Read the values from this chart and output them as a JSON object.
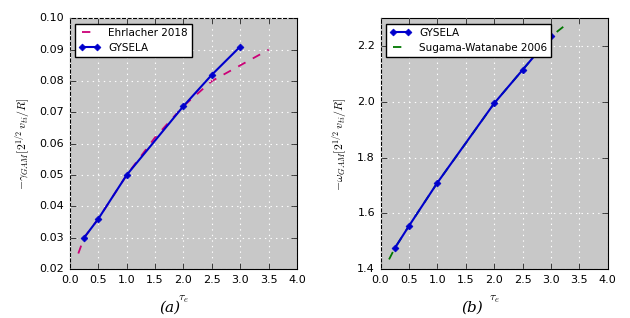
{
  "subplot_a": {
    "gysela_x": [
      0.25,
      0.5,
      1.0,
      2.0,
      2.5,
      3.0
    ],
    "gysela_y": [
      0.03,
      0.036,
      0.05,
      0.072,
      0.082,
      0.091
    ],
    "ehrlacher_x": [
      0.15,
      0.25,
      0.5,
      1.0,
      1.5,
      2.0,
      2.5,
      3.0,
      3.5
    ],
    "ehrlacher_y": [
      0.025,
      0.03,
      0.036,
      0.05,
      0.062,
      0.072,
      0.08,
      0.085,
      0.09
    ],
    "xlabel": "$\\tau_e$",
    "ylabel": "$-\\gamma_{GAM}[2^{1/2}\\,v_{ti}/R]$",
    "ylim": [
      0.02,
      0.1
    ],
    "xlim": [
      0.0,
      4.0
    ],
    "yticks": [
      0.02,
      0.03,
      0.04,
      0.05,
      0.06,
      0.07,
      0.08,
      0.09,
      0.1
    ],
    "xticks": [
      0.0,
      0.5,
      1.0,
      1.5,
      2.0,
      2.5,
      3.0,
      3.5,
      4.0
    ],
    "label_caption": "(a)",
    "legend_gysela": "GYSELA",
    "legend_ehrlacher": "Ehrlacher 2018",
    "gysela_color": "#0000cc",
    "ehrlacher_color": "#cc0077",
    "background_color": "#c8c8c8"
  },
  "subplot_b": {
    "gysela_x": [
      0.25,
      0.5,
      1.0,
      2.0,
      2.5,
      3.0
    ],
    "gysela_y": [
      1.475,
      1.555,
      1.71,
      1.995,
      2.115,
      2.235
    ],
    "sugama_x": [
      0.15,
      0.25,
      0.5,
      1.0,
      1.5,
      2.0,
      2.5,
      3.0,
      3.25
    ],
    "sugama_y": [
      1.435,
      1.475,
      1.555,
      1.71,
      1.852,
      1.995,
      2.115,
      2.235,
      2.275
    ],
    "xlabel": "$\\tau_e$",
    "ylabel": "$-\\omega_{GAM}[2^{1/2}\\,v_{ti}/R]$",
    "ylim": [
      1.4,
      2.3
    ],
    "xlim": [
      0.0,
      4.0
    ],
    "yticks": [
      1.4,
      1.6,
      1.8,
      2.0,
      2.2
    ],
    "xticks": [
      0.0,
      0.5,
      1.0,
      1.5,
      2.0,
      2.5,
      3.0,
      3.5,
      4.0
    ],
    "label_caption": "(b)",
    "legend_gysela": "GYSELA",
    "legend_sugama": "Sugama-Watanabe 2006",
    "gysela_color": "#0000cc",
    "sugama_color": "#007700",
    "background_color": "#c8c8c8"
  },
  "fig_background": "#ffffff",
  "grid_color": "#ffffff",
  "grid_linewidth": 0.8,
  "tick_fontsize": 8,
  "label_fontsize": 8.5,
  "legend_fontsize": 7.5,
  "caption_fontsize": 11
}
